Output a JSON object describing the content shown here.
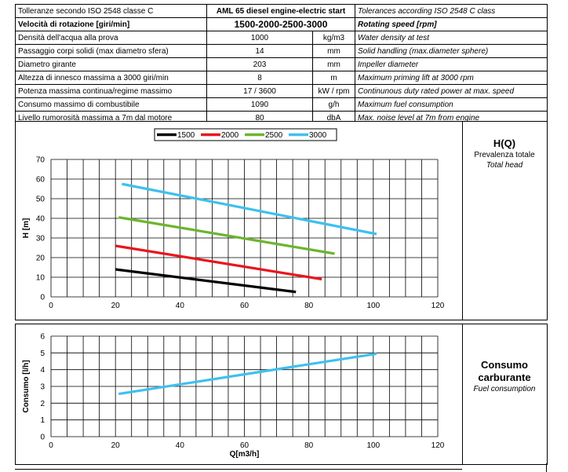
{
  "spec_table": {
    "header": {
      "left": "Tolleranze secondo ISO 2548 classe C",
      "model": "AML 65 diesel engine-electric start",
      "right": "Tolerances according ISO 2548 C class"
    },
    "speed": {
      "left": "Velocità di rotazione [giri/min]",
      "value": "1500-2000-2500-3000",
      "right": "Rotating speed [rpm]"
    },
    "rows": [
      {
        "it": "Densità dell'acqua alla prova",
        "value": "1000",
        "unit": "kg/m3",
        "en": "Water density at test"
      },
      {
        "it": "Passaggio corpi solidi (max diametro sfera)",
        "value": "14",
        "unit": "mm",
        "en": "Solid handling (max.diameter sphere)"
      },
      {
        "it": "Diametro girante",
        "value": "203",
        "unit": "mm",
        "en": "Impeller diameter"
      },
      {
        "it": "Altezza di innesco massima a 3000 giri/min",
        "value": "8",
        "unit": "m",
        "en": "Maximum priming lift at 3000 rpm"
      },
      {
        "it": "Potenza massima continua/regime massimo",
        "value": "17 / 3600",
        "unit": "kW / rpm",
        "en": "Continunous duty rated power at max. speed"
      },
      {
        "it": "Consumo massimo di combustibile",
        "value": "1090",
        "unit": "g/h",
        "en": "Maximum fuel consumption"
      },
      {
        "it": "Livello rumorosità massima a 7m dal motore",
        "value": "80",
        "unit": "dbA",
        "en": "Max. noise level at 7m from engine"
      }
    ]
  },
  "head_panel": {
    "title": "H(Q)",
    "subtitle": "Prevalenza totale",
    "subtitle_en": "Total head"
  },
  "fuel_panel": {
    "title_line1": "Consumo",
    "title_line2": "carburante",
    "subtitle_en": "Fuel consumption"
  },
  "chart_data": [
    {
      "type": "line",
      "title": "",
      "xlabel": "",
      "ylabel": "H [m]",
      "xlim": [
        0,
        120
      ],
      "ylim": [
        0,
        70
      ],
      "xticks": [
        0,
        20,
        40,
        60,
        80,
        100,
        120
      ],
      "yticks": [
        0,
        10,
        20,
        30,
        40,
        50,
        60,
        70
      ],
      "grid": true,
      "legend_position": "top-center",
      "series": [
        {
          "name": "1500",
          "color": "#000000",
          "x": [
            20,
            76
          ],
          "y": [
            14,
            2.5
          ]
        },
        {
          "name": "2000",
          "color": "#e8161e",
          "x": [
            20,
            84
          ],
          "y": [
            26,
            9
          ]
        },
        {
          "name": "2500",
          "color": "#6cb52d",
          "x": [
            21,
            88
          ],
          "y": [
            40.5,
            22
          ]
        },
        {
          "name": "3000",
          "color": "#3ec0ef",
          "x": [
            22,
            101
          ],
          "y": [
            57.5,
            32
          ]
        }
      ]
    },
    {
      "type": "line",
      "title": "",
      "xlabel": "Q[m3/h]",
      "ylabel": "Consumo [l/h]",
      "xlim": [
        0,
        120
      ],
      "ylim": [
        0,
        6
      ],
      "xticks": [
        0,
        20,
        40,
        60,
        80,
        100,
        120
      ],
      "yticks": [
        0,
        1,
        2,
        3,
        4,
        5,
        6
      ],
      "grid": true,
      "series": [
        {
          "color": "#3ec0ef",
          "x": [
            21,
            101
          ],
          "y": [
            2.55,
            4.95
          ]
        }
      ]
    }
  ]
}
